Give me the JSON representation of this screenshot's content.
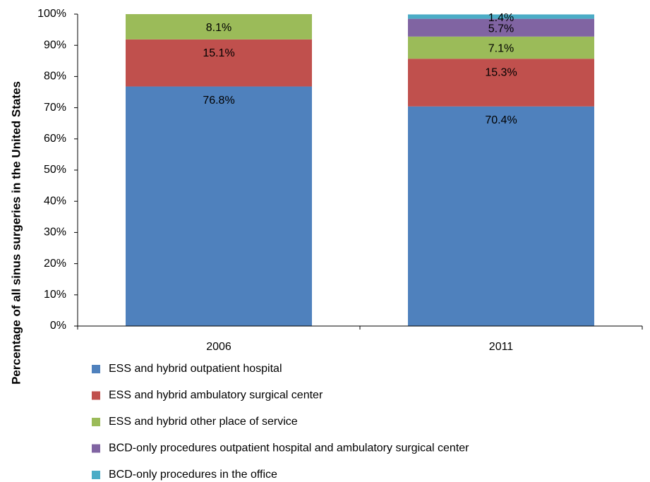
{
  "chart_data": {
    "type": "stacked_bar",
    "ylabel": "Percentage of all sinus surgeries in the United States",
    "categories": [
      "2006",
      "2011"
    ],
    "series": [
      {
        "name": "ESS and hybrid outpatient hospital",
        "color": "#4f81bd",
        "values": [
          76.8,
          70.4
        ],
        "value_labels": [
          "76.8%",
          "70.4%"
        ]
      },
      {
        "name": "ESS and hybrid ambulatory surgical center",
        "color": "#c0504d",
        "values": [
          15.1,
          15.3
        ],
        "value_labels": [
          "15.1%",
          "15.3%"
        ]
      },
      {
        "name": "ESS and hybrid other place of service",
        "color": "#9bbb59",
        "values": [
          8.1,
          7.1
        ],
        "value_labels": [
          "8.1%",
          "7.1%"
        ]
      },
      {
        "name": "BCD-only procedures outpatient hospital and ambulatory surgical center",
        "color": "#8064a2",
        "values": [
          null,
          5.7
        ],
        "value_labels": [
          null,
          "5.7%"
        ]
      },
      {
        "name": "BCD-only procedures in the office",
        "color": "#4bacc6",
        "values": [
          null,
          1.4
        ],
        "value_labels": [
          null,
          "1.4%"
        ]
      }
    ],
    "ylim": [
      0,
      100
    ],
    "yticks": [
      {
        "value": 0,
        "label": "0%"
      },
      {
        "value": 10,
        "label": "10%"
      },
      {
        "value": 20,
        "label": "20%"
      },
      {
        "value": 30,
        "label": "30%"
      },
      {
        "value": 40,
        "label": "40%"
      },
      {
        "value": 50,
        "label": "50%"
      },
      {
        "value": 60,
        "label": "60%"
      },
      {
        "value": 70,
        "label": "70%"
      },
      {
        "value": 80,
        "label": "80%"
      },
      {
        "value": 90,
        "label": "90%"
      },
      {
        "value": 100,
        "label": "100%"
      }
    ],
    "legend": "bottom"
  }
}
